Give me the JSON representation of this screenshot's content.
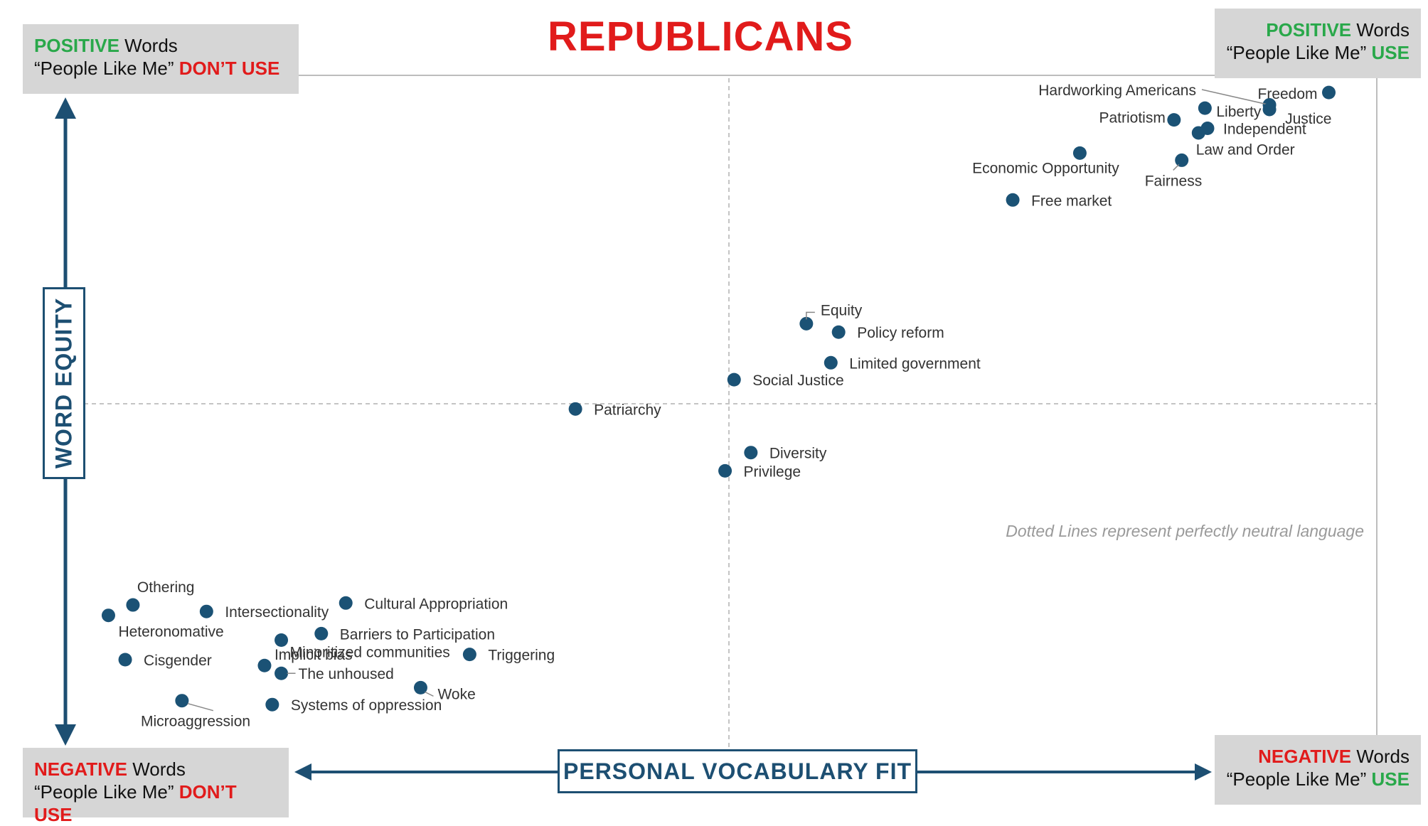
{
  "title": "REPUBLICANS",
  "corners": {
    "top_left": {
      "kind": "POSITIVE",
      "word": " Words",
      "line2_prefix": "“People Like Me” ",
      "action": "DON’T USE"
    },
    "top_right": {
      "kind": "POSITIVE",
      "word": " Words",
      "line2_prefix": "“People Like Me” ",
      "action": "USE"
    },
    "bottom_left": {
      "kind": "NEGATIVE",
      "word": " Words",
      "line2_prefix": "“People Like Me” ",
      "action": "DON’T USE"
    },
    "bottom_right": {
      "kind": "NEGATIVE",
      "word": " Words",
      "line2_prefix": "“People Like Me” ",
      "action": "USE"
    }
  },
  "colors": {
    "point": "#1b5275",
    "axis": "#1d4f72",
    "positive": "#29a84a",
    "negative": "#e11b1b",
    "neutral_line": "#b0b0b0"
  },
  "note": "Dotted Lines represent perfectly neutral language",
  "chart_data": {
    "type": "scatter",
    "xlabel": "PERSONAL VOCABULARY FIT",
    "ylabel": "WORD EQUITY",
    "xlim": [
      0,
      100
    ],
    "ylim": [
      0,
      100
    ],
    "neutral_x": 50,
    "neutral_y": 50,
    "grid": false,
    "points": [
      {
        "label": "Freedom",
        "x": 96.5,
        "y": 97.8
      },
      {
        "label": "Hardworking Americans",
        "x": 91.9,
        "y": 95.9
      },
      {
        "label": "Justice",
        "x": 91.9,
        "y": 95.2
      },
      {
        "label": "Liberty",
        "x": 86.9,
        "y": 95.4
      },
      {
        "label": "Patriotism",
        "x": 84.5,
        "y": 93.6
      },
      {
        "label": "Independent",
        "x": 87.1,
        "y": 92.3
      },
      {
        "label": "Independent",
        "x": 86.4,
        "y": 91.6
      },
      {
        "label": "Law and Order",
        "x": 85.1,
        "y": 87.4
      },
      {
        "label": "Economic Opportunity",
        "x": 77.2,
        "y": 88.5
      },
      {
        "label": "Free market",
        "x": 72.0,
        "y": 81.3
      },
      {
        "label": "Equity",
        "x": 56.0,
        "y": 62.3
      },
      {
        "label": "Policy reform",
        "x": 58.5,
        "y": 61.0
      },
      {
        "label": "Limited government",
        "x": 57.9,
        "y": 56.3
      },
      {
        "label": "Social Justice",
        "x": 50.4,
        "y": 53.7
      },
      {
        "label": "Patriarchy",
        "x": 38.1,
        "y": 49.2
      },
      {
        "label": "Diversity",
        "x": 51.7,
        "y": 42.5
      },
      {
        "label": "Privilege",
        "x": 49.7,
        "y": 39.7
      },
      {
        "label": "Othering",
        "x": 3.8,
        "y": 19.1
      },
      {
        "label": "Heteronomative",
        "x": 1.9,
        "y": 17.5
      },
      {
        "label": "Intersectionality",
        "x": 9.5,
        "y": 18.1
      },
      {
        "label": "Cultural Appropriation",
        "x": 20.3,
        "y": 19.4
      },
      {
        "label": "Barriers to Participation",
        "x": 18.4,
        "y": 14.7
      },
      {
        "label": "Minoritized communities",
        "x": 15.3,
        "y": 13.7
      },
      {
        "label": "Triggering",
        "x": 29.9,
        "y": 11.5
      },
      {
        "label": "Cisgender",
        "x": 3.2,
        "y": 10.7
      },
      {
        "label": "Implicit bias",
        "x": 14.0,
        "y": 9.8
      },
      {
        "label": "The unhoused",
        "x": 15.3,
        "y": 8.6
      },
      {
        "label": "Woke",
        "x": 26.1,
        "y": 6.4
      },
      {
        "label": "Microaggression",
        "x": 7.6,
        "y": 4.4
      },
      {
        "label": "Systems of oppression",
        "x": 14.6,
        "y": 3.8
      }
    ]
  }
}
